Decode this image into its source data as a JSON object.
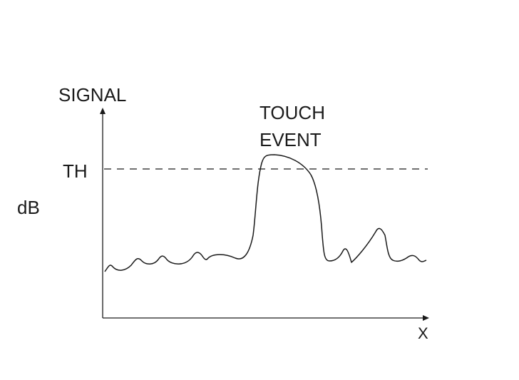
{
  "diagram": {
    "y_axis_label": "SIGNAL",
    "unit_label": "dB",
    "threshold_label": "TH",
    "event_label_line1": "TOUCH",
    "event_label_line2": "EVENT",
    "x_axis_label": "X",
    "stroke_color": "#1a1a1a"
  }
}
